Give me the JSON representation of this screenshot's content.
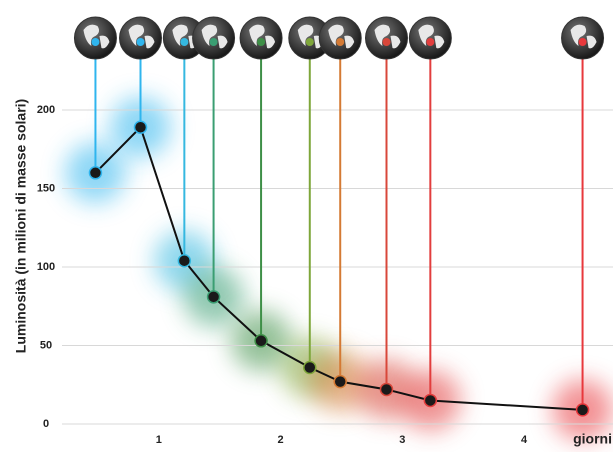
{
  "chart_data": {
    "type": "line",
    "x_label": "giorni",
    "y_label": "Luminosità (in milioni di masse solari)",
    "x": [
      0.48,
      0.85,
      1.21,
      1.45,
      1.84,
      2.24,
      2.49,
      2.87,
      3.23,
      4.48
    ],
    "series": [
      {
        "color": "#111111",
        "values": [
          160,
          189,
          104,
          81,
          53,
          36,
          27,
          22,
          15,
          9
        ],
        "point_colors": [
          "#2fb5ee",
          "#2fb5ee",
          "#35b8e0",
          "#3a9e72",
          "#3e8f47",
          "#7ea63a",
          "#d47a34",
          "#d8473a",
          "#e23d3d",
          "#e8383c"
        ]
      }
    ],
    "xlim": [
      0,
      4.73
    ],
    "ylim": [
      0,
      220
    ],
    "xticks": [
      1,
      2,
      3,
      4
    ],
    "yticks": [
      0,
      50,
      100,
      150,
      200
    ],
    "grid": true
  }
}
